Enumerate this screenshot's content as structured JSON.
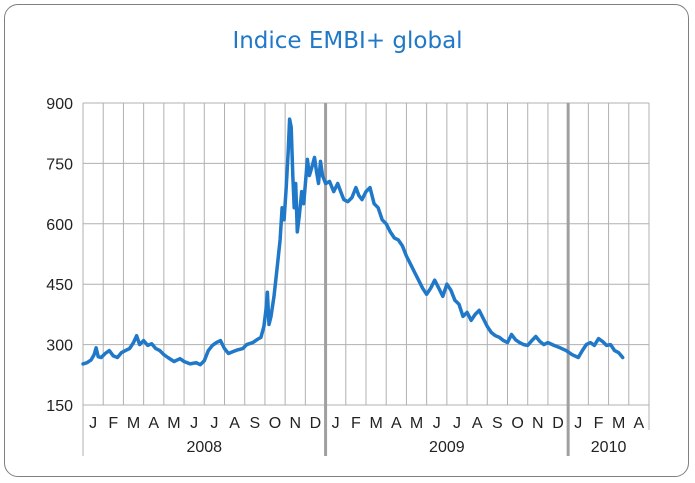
{
  "chart_data": {
    "type": "line",
    "title": "Indice EMBI+ global",
    "xlabel": "",
    "ylabel": "",
    "ylim": [
      150,
      900
    ],
    "yticks": [
      150,
      300,
      450,
      600,
      750,
      900
    ],
    "grid": true,
    "colors": {
      "line": "#1f78c8",
      "title": "#1f78c8",
      "grid": "#b0b0b0",
      "year_divider": "#a0a0a0"
    },
    "months": [
      "J",
      "F",
      "M",
      "A",
      "M",
      "J",
      "J",
      "A",
      "S",
      "O",
      "N",
      "D",
      "J",
      "F",
      "M",
      "A",
      "M",
      "J",
      "J",
      "A",
      "S",
      "O",
      "N",
      "D",
      "J",
      "F",
      "M",
      "A"
    ],
    "years": [
      {
        "label": "2008",
        "start_month": 0,
        "end_month": 12
      },
      {
        "label": "2009",
        "start_month": 12,
        "end_month": 24
      },
      {
        "label": "2010",
        "start_month": 24,
        "end_month": 28
      }
    ],
    "series": [
      {
        "x_unit": "months since Jan 2008",
        "points": [
          [
            0.0,
            252
          ],
          [
            0.2,
            255
          ],
          [
            0.4,
            262
          ],
          [
            0.55,
            275
          ],
          [
            0.65,
            292
          ],
          [
            0.75,
            270
          ],
          [
            0.9,
            268
          ],
          [
            1.1,
            278
          ],
          [
            1.3,
            285
          ],
          [
            1.5,
            272
          ],
          [
            1.7,
            268
          ],
          [
            1.9,
            280
          ],
          [
            2.1,
            285
          ],
          [
            2.3,
            290
          ],
          [
            2.5,
            305
          ],
          [
            2.65,
            322
          ],
          [
            2.8,
            300
          ],
          [
            3.0,
            310
          ],
          [
            3.2,
            298
          ],
          [
            3.4,
            302
          ],
          [
            3.6,
            290
          ],
          [
            3.8,
            285
          ],
          [
            4.0,
            275
          ],
          [
            4.2,
            268
          ],
          [
            4.5,
            258
          ],
          [
            4.8,
            265
          ],
          [
            5.0,
            258
          ],
          [
            5.3,
            252
          ],
          [
            5.6,
            255
          ],
          [
            5.8,
            250
          ],
          [
            6.0,
            260
          ],
          [
            6.2,
            285
          ],
          [
            6.4,
            298
          ],
          [
            6.6,
            305
          ],
          [
            6.8,
            310
          ],
          [
            7.0,
            290
          ],
          [
            7.2,
            278
          ],
          [
            7.4,
            282
          ],
          [
            7.6,
            286
          ],
          [
            7.9,
            290
          ],
          [
            8.1,
            300
          ],
          [
            8.4,
            305
          ],
          [
            8.6,
            312
          ],
          [
            8.8,
            318
          ],
          [
            8.95,
            345
          ],
          [
            9.05,
            385
          ],
          [
            9.12,
            430
          ],
          [
            9.2,
            350
          ],
          [
            9.3,
            370
          ],
          [
            9.45,
            420
          ],
          [
            9.6,
            490
          ],
          [
            9.75,
            560
          ],
          [
            9.85,
            640
          ],
          [
            9.95,
            610
          ],
          [
            10.05,
            690
          ],
          [
            10.15,
            780
          ],
          [
            10.22,
            860
          ],
          [
            10.3,
            840
          ],
          [
            10.38,
            720
          ],
          [
            10.45,
            640
          ],
          [
            10.52,
            700
          ],
          [
            10.6,
            580
          ],
          [
            10.7,
            620
          ],
          [
            10.82,
            680
          ],
          [
            10.92,
            650
          ],
          [
            11.0,
            700
          ],
          [
            11.1,
            760
          ],
          [
            11.2,
            720
          ],
          [
            11.32,
            740
          ],
          [
            11.45,
            765
          ],
          [
            11.55,
            730
          ],
          [
            11.65,
            700
          ],
          [
            11.75,
            755
          ],
          [
            11.85,
            720
          ],
          [
            12.0,
            700
          ],
          [
            12.2,
            705
          ],
          [
            12.4,
            680
          ],
          [
            12.6,
            700
          ],
          [
            12.75,
            680
          ],
          [
            12.9,
            660
          ],
          [
            13.1,
            655
          ],
          [
            13.3,
            665
          ],
          [
            13.5,
            690
          ],
          [
            13.65,
            670
          ],
          [
            13.8,
            660
          ],
          [
            14.0,
            680
          ],
          [
            14.2,
            690
          ],
          [
            14.4,
            650
          ],
          [
            14.6,
            640
          ],
          [
            14.8,
            610
          ],
          [
            15.0,
            600
          ],
          [
            15.2,
            580
          ],
          [
            15.4,
            565
          ],
          [
            15.6,
            560
          ],
          [
            15.8,
            545
          ],
          [
            16.0,
            520
          ],
          [
            16.2,
            500
          ],
          [
            16.4,
            480
          ],
          [
            16.6,
            460
          ],
          [
            16.8,
            440
          ],
          [
            17.0,
            425
          ],
          [
            17.2,
            440
          ],
          [
            17.4,
            460
          ],
          [
            17.6,
            440
          ],
          [
            17.8,
            420
          ],
          [
            18.0,
            450
          ],
          [
            18.2,
            435
          ],
          [
            18.4,
            410
          ],
          [
            18.6,
            400
          ],
          [
            18.8,
            370
          ],
          [
            19.0,
            380
          ],
          [
            19.2,
            360
          ],
          [
            19.4,
            375
          ],
          [
            19.6,
            385
          ],
          [
            19.8,
            365
          ],
          [
            20.0,
            345
          ],
          [
            20.2,
            330
          ],
          [
            20.4,
            322
          ],
          [
            20.6,
            318
          ],
          [
            20.8,
            310
          ],
          [
            21.0,
            305
          ],
          [
            21.2,
            325
          ],
          [
            21.4,
            312
          ],
          [
            21.6,
            305
          ],
          [
            21.8,
            300
          ],
          [
            22.0,
            298
          ],
          [
            22.2,
            310
          ],
          [
            22.4,
            320
          ],
          [
            22.6,
            308
          ],
          [
            22.8,
            300
          ],
          [
            23.0,
            305
          ],
          [
            23.3,
            298
          ],
          [
            23.6,
            292
          ],
          [
            23.9,
            285
          ],
          [
            24.2,
            275
          ],
          [
            24.5,
            268
          ],
          [
            24.7,
            285
          ],
          [
            24.9,
            300
          ],
          [
            25.1,
            305
          ],
          [
            25.3,
            298
          ],
          [
            25.5,
            315
          ],
          [
            25.7,
            308
          ],
          [
            25.9,
            298
          ],
          [
            26.1,
            300
          ],
          [
            26.3,
            285
          ],
          [
            26.5,
            280
          ],
          [
            26.7,
            268
          ]
        ]
      }
    ]
  }
}
